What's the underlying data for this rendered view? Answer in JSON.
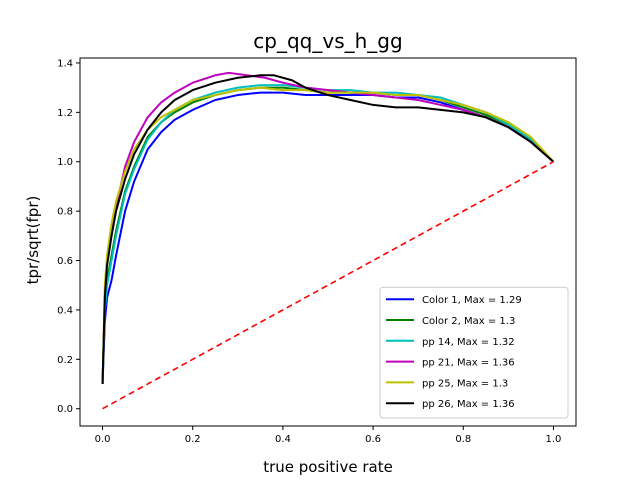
{
  "chart_data": {
    "type": "line",
    "title": "cp_qq_vs_h_gg",
    "xlabel": "true positive rate",
    "ylabel": "tpr/sqrt(fpr)",
    "xlim": [
      -0.05,
      1.05
    ],
    "ylim": [
      -0.07,
      1.42
    ],
    "xticks": [
      0.0,
      0.2,
      0.4,
      0.6,
      0.8,
      1.0
    ],
    "xtick_labels": [
      "0.0",
      "0.2",
      "0.4",
      "0.6",
      "0.8",
      "1.0"
    ],
    "yticks": [
      0.0,
      0.2,
      0.4,
      0.6,
      0.8,
      1.0,
      1.2,
      1.4
    ],
    "ytick_labels": [
      "0.0",
      "0.2",
      "0.4",
      "0.6",
      "0.8",
      "1.0",
      "1.2",
      "1.4"
    ],
    "grid": false,
    "legend_position": "lower-right",
    "series": [
      {
        "name": "Color 1, Max = 1.29",
        "color": "#0000ff",
        "x": [
          0.0,
          0.005,
          0.01,
          0.02,
          0.03,
          0.05,
          0.07,
          0.1,
          0.13,
          0.16,
          0.2,
          0.25,
          0.3,
          0.35,
          0.4,
          0.45,
          0.5,
          0.55,
          0.6,
          0.65,
          0.7,
          0.75,
          0.8,
          0.85,
          0.9,
          0.95,
          1.0
        ],
        "y": [
          0.1,
          0.35,
          0.45,
          0.52,
          0.62,
          0.8,
          0.92,
          1.05,
          1.12,
          1.17,
          1.21,
          1.25,
          1.27,
          1.28,
          1.28,
          1.27,
          1.27,
          1.27,
          1.27,
          1.26,
          1.26,
          1.24,
          1.21,
          1.18,
          1.14,
          1.08,
          1.0
        ]
      },
      {
        "name": "Color 2, Max = 1.3",
        "color": "#008000",
        "x": [
          0.0,
          0.005,
          0.01,
          0.02,
          0.03,
          0.05,
          0.07,
          0.1,
          0.13,
          0.16,
          0.2,
          0.25,
          0.3,
          0.35,
          0.4,
          0.45,
          0.5,
          0.55,
          0.6,
          0.65,
          0.7,
          0.75,
          0.8,
          0.85,
          0.9,
          0.95,
          1.0
        ],
        "y": [
          0.1,
          0.42,
          0.52,
          0.62,
          0.72,
          0.88,
          0.98,
          1.1,
          1.16,
          1.2,
          1.24,
          1.27,
          1.29,
          1.3,
          1.3,
          1.29,
          1.28,
          1.28,
          1.28,
          1.27,
          1.27,
          1.25,
          1.22,
          1.19,
          1.15,
          1.09,
          1.0
        ]
      },
      {
        "name": "pp 14, Max = 1.32",
        "color": "#00bfbf",
        "x": [
          0.0,
          0.005,
          0.01,
          0.02,
          0.03,
          0.05,
          0.07,
          0.1,
          0.13,
          0.16,
          0.2,
          0.25,
          0.3,
          0.35,
          0.4,
          0.45,
          0.5,
          0.55,
          0.6,
          0.65,
          0.7,
          0.75,
          0.8,
          0.85,
          0.9,
          0.95,
          1.0
        ],
        "y": [
          0.1,
          0.4,
          0.5,
          0.6,
          0.7,
          0.87,
          0.97,
          1.09,
          1.16,
          1.21,
          1.25,
          1.28,
          1.3,
          1.31,
          1.31,
          1.3,
          1.29,
          1.29,
          1.28,
          1.28,
          1.27,
          1.26,
          1.23,
          1.2,
          1.15,
          1.09,
          1.0
        ]
      },
      {
        "name": "pp 21, Max = 1.36",
        "color": "#bf00bf",
        "x": [
          0.0,
          0.005,
          0.01,
          0.02,
          0.03,
          0.05,
          0.07,
          0.1,
          0.13,
          0.16,
          0.2,
          0.25,
          0.28,
          0.32,
          0.36,
          0.4,
          0.45,
          0.5,
          0.55,
          0.6,
          0.65,
          0.7,
          0.75,
          0.8,
          0.85,
          0.9,
          0.95,
          1.0
        ],
        "y": [
          0.1,
          0.45,
          0.6,
          0.72,
          0.82,
          0.98,
          1.08,
          1.18,
          1.24,
          1.28,
          1.32,
          1.35,
          1.36,
          1.35,
          1.34,
          1.32,
          1.3,
          1.29,
          1.28,
          1.27,
          1.26,
          1.25,
          1.23,
          1.21,
          1.18,
          1.14,
          1.08,
          1.0
        ]
      },
      {
        "name": "pp 25, Max = 1.3",
        "color": "#bfbf00",
        "x": [
          0.0,
          0.005,
          0.01,
          0.02,
          0.03,
          0.05,
          0.07,
          0.1,
          0.13,
          0.16,
          0.2,
          0.25,
          0.3,
          0.35,
          0.4,
          0.45,
          0.5,
          0.55,
          0.6,
          0.65,
          0.7,
          0.75,
          0.8,
          0.85,
          0.9,
          0.95,
          1.0
        ],
        "y": [
          0.1,
          0.5,
          0.62,
          0.75,
          0.84,
          0.96,
          1.05,
          1.13,
          1.18,
          1.21,
          1.25,
          1.27,
          1.29,
          1.3,
          1.29,
          1.29,
          1.28,
          1.28,
          1.28,
          1.27,
          1.27,
          1.25,
          1.23,
          1.2,
          1.16,
          1.1,
          1.0
        ]
      },
      {
        "name": "pp 26, Max = 1.36",
        "color": "#000000",
        "x": [
          0.0,
          0.005,
          0.01,
          0.02,
          0.03,
          0.05,
          0.07,
          0.1,
          0.13,
          0.16,
          0.2,
          0.25,
          0.3,
          0.35,
          0.38,
          0.42,
          0.45,
          0.5,
          0.55,
          0.6,
          0.65,
          0.7,
          0.75,
          0.8,
          0.85,
          0.9,
          0.95,
          1.0
        ],
        "y": [
          0.1,
          0.45,
          0.58,
          0.7,
          0.8,
          0.93,
          1.03,
          1.13,
          1.2,
          1.25,
          1.29,
          1.32,
          1.34,
          1.35,
          1.35,
          1.33,
          1.3,
          1.27,
          1.25,
          1.23,
          1.22,
          1.22,
          1.21,
          1.2,
          1.18,
          1.14,
          1.08,
          1.0
        ]
      }
    ],
    "reference_line": {
      "style": "dashed",
      "color": "#ff0000",
      "x": [
        0.0,
        1.0
      ],
      "y": [
        0.0,
        1.0
      ]
    }
  }
}
